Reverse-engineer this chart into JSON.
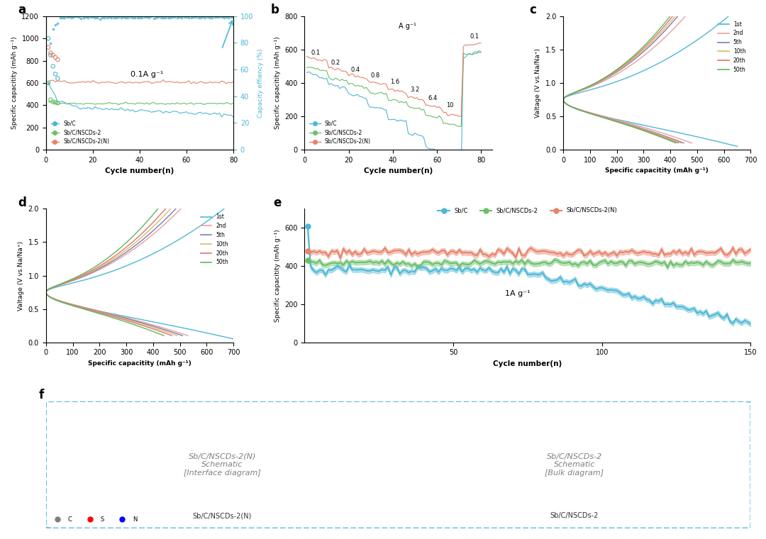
{
  "bg_color": "#ffffff",
  "panel_labels": [
    "a",
    "b",
    "c",
    "d",
    "e",
    "f"
  ],
  "colors": {
    "sbc": "#4db8d4",
    "sbc_nscds2": "#6abf69",
    "sbc_nscds2n": "#e8826a",
    "ce": "#4db8d4",
    "1st": "#4db8d4",
    "2nd": "#e8a0a0",
    "5th": "#7b7bb8",
    "10th": "#d4c060",
    "20th": "#e87070",
    "50th": "#5cb85c"
  },
  "panel_a": {
    "xlabel": "Cycle number(n)",
    "ylabel_left": "Specific capacitity (mAh g⁻¹)",
    "ylabel_right": "Capacity effiency (%)",
    "annotation": "0.1A g⁻¹",
    "xlim": [
      0,
      80
    ],
    "ylim_left": [
      0,
      1200
    ],
    "ylim_right": [
      0,
      100
    ],
    "yticks_left": [
      0,
      200,
      400,
      600,
      800,
      1000,
      1200
    ],
    "yticks_right": [
      0,
      20,
      40,
      60,
      80,
      100
    ],
    "xticks": [
      0,
      20,
      40,
      60,
      80
    ]
  },
  "panel_b": {
    "xlabel": "Cycle number(n)",
    "ylabel": "Specific capacitity (mAh g⁻¹)",
    "annotation": "A g⁻¹",
    "rate_labels": [
      "0.1",
      "0.2",
      "0.4",
      "0.8",
      "1.6",
      "3.2",
      "6.4",
      "10",
      "0.1"
    ],
    "xlim": [
      0,
      85
    ],
    "ylim": [
      0,
      800
    ],
    "yticks": [
      0,
      200,
      400,
      600,
      800
    ],
    "xticks": [
      0,
      20,
      40,
      60,
      80
    ]
  },
  "panel_c": {
    "xlabel": "Specific capacitity (mAh g⁻¹)",
    "ylabel": "Valtage (V vs.Na/Na⁺)",
    "xlim": [
      0,
      700
    ],
    "ylim": [
      0,
      2.0
    ],
    "xticks": [
      0,
      100,
      200,
      300,
      400,
      500,
      600,
      700
    ],
    "yticks": [
      0.0,
      0.5,
      1.0,
      1.5,
      2.0
    ]
  },
  "panel_d": {
    "xlabel": "Specific capacitity (mAh g⁻¹)",
    "ylabel": "Valtage (V vs.Na/Na⁺)",
    "xlim": [
      0,
      700
    ],
    "ylim": [
      0,
      2.0
    ],
    "xticks": [
      0,
      100,
      200,
      300,
      400,
      500,
      600,
      700
    ],
    "yticks": [
      0.0,
      0.5,
      1.0,
      1.5,
      2.0
    ]
  },
  "panel_e": {
    "xlabel": "Cycle number(n)",
    "ylabel": "Specific capacitity (mAh g⁻¹)",
    "annotation": "1A g⁻¹",
    "xlim": [
      0,
      150
    ],
    "ylim": [
      0,
      700
    ],
    "yticks": [
      0,
      200,
      400,
      600
    ],
    "xticks": [
      50,
      100,
      150
    ]
  }
}
